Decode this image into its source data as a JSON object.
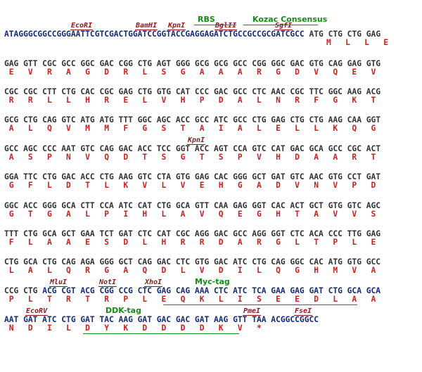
{
  "header": {
    "labels": [
      {
        "text": "RBS",
        "name": "rbs-label"
      },
      {
        "text": "Kozac Consensus",
        "name": "kozac-consensus-label"
      }
    ],
    "sites": [
      {
        "text": "EcoRI",
        "name": "ecori-site"
      },
      {
        "text": "BamHI",
        "name": "bamhi-site"
      },
      {
        "text": "KpnI",
        "name": "kpni-site"
      },
      {
        "text": "BglII",
        "name": "bglii-site"
      },
      {
        "text": "SgfI",
        "name": "sgfi-site"
      }
    ],
    "vector_dna": "ATAGGGCGGCCGGGAATTCGTCGACTGGATCCGGTACCGAGGAGATCTGCCGCCGCGATCGCC",
    "start_dna": "ATG CTG CTG GAG",
    "start_aa": "M   L   L   E"
  },
  "rows": [
    {
      "dna": "GAG GTT CGC GCC GGC GAC CGG CTG AGT GGG GCG GCG GCC CGG GGC GAC GTG CAG GAG GTG",
      "aa": " E   V   R   A   G   D   R   L   S   G   A   A   A   R   G   D   V   Q   E   V"
    },
    {
      "dna": "CGC CGC CTT CTG CAC CGC GAG CTG GTG CAT CCC GAC GCC CTC AAC CGC TTC GGC AAG ACG",
      "aa": " R   R   L   L   H   R   E   L   V   H   P   D   A   L   N   R   F   G   K   T"
    },
    {
      "dna": "GCG CTG CAG GTC ATG ATG TTT GGC AGC ACC GCC ATC GCC CTG GAG CTG CTG AAG CAA GGT",
      "aa": " A   L   Q   V   M   M   F   G   S   T   A   I   A   L   E   L   L   K   Q   G"
    },
    {
      "dna": "GCC AGC CCC AAT GTC CAG GAC ACC TCC GGT ACC AGT CCA GTC CAT GAC GCA GCC CGC ACT",
      "aa": " A   S   P   N   V   Q   D   T   S   G   T   S   P   V   H   D   A   A   R   T",
      "sites": [
        {
          "text": "KpnI",
          "name": "kpni-site-2"
        }
      ]
    },
    {
      "dna": "GGA TTC CTG GAC ACC CTG AAG GTC CTA GTG GAG CAC GGG GCT GAT GTC AAC GTG CCT GAT",
      "aa": " G   F   L   D   T   L   K   V   L   V   E   H   G   A   D   V   N   V   P   D"
    },
    {
      "dna": "GGC ACC GGG GCA CTT CCA ATC CAT CTG GCA GTT CAA GAG GGT CAC ACT GCT GTG GTC AGC",
      "aa": " G   T   G   A   L   P   I   H   L   A   V   Q   E   G   H   T   A   V   V   S"
    },
    {
      "dna": "TTT CTG GCA GCT GAA TCT GAT CTC CAT CGC AGG GAC GCC AGG GGT CTC ACA CCC TTG GAG",
      "aa": " F   L   A   A   E   S   D   L   H   R   R   D   A   R   G   L   T   P   L   E"
    },
    {
      "dna": "CTG GCA CTG CAG AGA GGG GCT CAG GAC CTC GTG GAC ATC CTG CAG GGC CAC ATG GTG GCC",
      "aa": " L   A   L   Q   R   G   A   Q   D   L   V   D   I   L   Q   G   H   M   V   A"
    },
    {
      "dna_plain": "CCG CTG ",
      "dna_vec": "ACG CGT ACG CGG CCG CTC GAG CAG AAA CTC ATC TCA GAA GAG GAT CTG GCA GCA",
      "aa": " P   L   T   R   T   R   P   L   E   Q   K   L   I   S   E   E   D   L   A   A",
      "sites": [
        {
          "text": "MluI",
          "name": "mlui-site"
        },
        {
          "text": "NotI",
          "name": "noti-site"
        },
        {
          "text": "XhoI",
          "name": "xhoi-site"
        }
      ],
      "labels": [
        {
          "text": "Myc-tag",
          "name": "myc-tag-label"
        }
      ]
    },
    {
      "dna": "AAT GAT ATC CTG GAT TAC AAG GAT GAC GAC GAT AAG GTT TAA ACGGCCGGCC",
      "aa": " N   D   I   L   D   Y   K   D   D   D   D   K   V   *",
      "sites": [
        {
          "text": "EcoRV",
          "name": "ecorv-site"
        },
        {
          "text": "PmeI",
          "name": "pmei-site"
        },
        {
          "text": "FseI",
          "name": "fsei-site"
        }
      ],
      "labels": [
        {
          "text": "DDK-tag",
          "name": "ddk-tag-label"
        }
      ]
    }
  ],
  "colors": {
    "vector_dna": "#152a7a",
    "insert_dna": "#333333",
    "amino_acid": "#c92121",
    "restriction_site": "#8b1a1a",
    "feature_label": "#158a15"
  }
}
